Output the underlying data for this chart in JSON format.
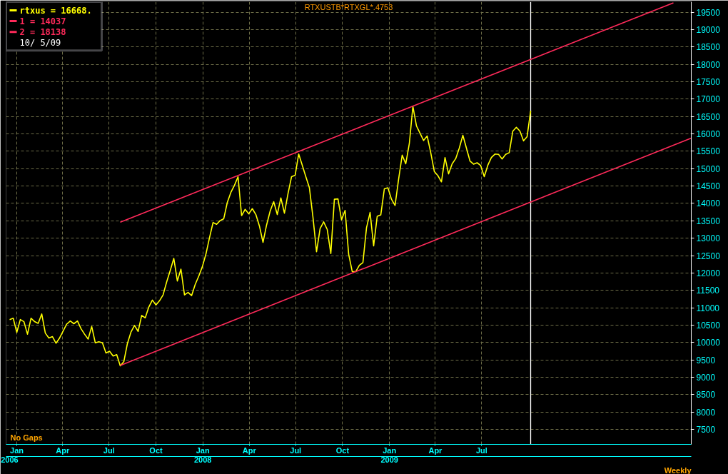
{
  "chart_data": {
    "type": "line",
    "title": "RTXUSTB*RTXGL*.4753",
    "legend_title": "10/ 5/09",
    "annotations": [
      "No Gaps",
      "Weekly"
    ],
    "x": [
      "2006-12-18",
      "2006-12-25",
      "2007-01-01",
      "2007-01-08",
      "2007-01-15",
      "2007-01-22",
      "2007-01-29",
      "2007-02-05",
      "2007-02-12",
      "2007-02-19",
      "2007-02-26",
      "2007-03-05",
      "2007-03-12",
      "2007-03-19",
      "2007-03-26",
      "2007-04-02",
      "2007-04-09",
      "2007-04-16",
      "2007-04-23",
      "2007-04-30",
      "2007-05-07",
      "2007-05-14",
      "2007-05-21",
      "2007-05-28",
      "2007-06-04",
      "2007-06-11",
      "2007-06-18",
      "2007-06-25",
      "2007-07-02",
      "2007-07-09",
      "2007-07-16",
      "2007-07-23",
      "2007-07-30",
      "2007-08-06",
      "2007-08-13",
      "2007-08-20",
      "2007-08-27",
      "2007-09-03",
      "2007-09-10",
      "2007-09-17",
      "2007-09-24",
      "2007-10-01",
      "2007-10-08",
      "2007-10-15",
      "2007-10-22",
      "2007-10-29",
      "2007-11-05",
      "2007-11-12",
      "2007-11-19",
      "2007-11-26",
      "2007-12-03",
      "2007-12-10",
      "2007-12-17",
      "2007-12-24",
      "2007-12-31",
      "2008-01-07",
      "2008-01-14",
      "2008-01-21",
      "2008-01-28",
      "2008-02-04",
      "2008-02-11",
      "2008-02-18",
      "2008-02-25",
      "2008-03-03",
      "2008-03-10",
      "2008-03-17",
      "2008-03-24",
      "2008-03-31",
      "2008-04-07",
      "2008-04-14",
      "2008-04-21",
      "2008-04-28",
      "2008-05-05",
      "2008-05-12",
      "2008-05-19",
      "2008-05-26",
      "2008-06-02",
      "2008-06-09",
      "2008-06-16",
      "2008-06-23",
      "2008-06-30",
      "2008-07-07",
      "2008-07-14",
      "2008-07-21",
      "2008-07-28",
      "2008-08-04",
      "2008-08-11",
      "2008-08-18",
      "2008-08-25",
      "2008-09-01",
      "2008-09-08",
      "2008-09-15",
      "2008-09-22",
      "2008-09-29",
      "2008-10-06",
      "2008-10-13",
      "2008-10-20",
      "2008-10-27",
      "2008-11-03",
      "2008-11-10",
      "2008-11-17",
      "2008-11-24",
      "2008-12-01",
      "2008-12-08",
      "2008-12-15",
      "2008-12-22",
      "2008-12-29",
      "2009-01-05",
      "2009-01-12",
      "2009-01-19",
      "2009-01-26",
      "2009-02-02",
      "2009-02-09",
      "2009-02-16",
      "2009-02-23",
      "2009-03-02",
      "2009-03-09",
      "2009-03-16",
      "2009-03-23",
      "2009-03-30",
      "2009-04-06",
      "2009-04-13",
      "2009-04-20",
      "2009-04-27",
      "2009-05-04",
      "2009-05-11",
      "2009-05-18",
      "2009-05-25",
      "2009-06-01",
      "2009-06-08",
      "2009-06-15",
      "2009-06-22",
      "2009-06-29",
      "2009-07-06",
      "2009-07-13",
      "2009-07-20",
      "2009-07-27",
      "2009-08-03",
      "2009-08-10",
      "2009-08-17",
      "2009-08-24",
      "2009-08-31",
      "2009-09-07",
      "2009-09-14",
      "2009-09-21",
      "2009-09-28",
      "2009-10-05"
    ],
    "series": [
      {
        "name": "rtxus = 16668.",
        "color": "#ffff00",
        "values": [
          10660,
          10700,
          10290,
          10660,
          10600,
          10240,
          10700,
          10600,
          10550,
          10820,
          10270,
          10130,
          10170,
          9980,
          10130,
          10330,
          10530,
          10620,
          10540,
          10620,
          10400,
          10240,
          10100,
          10460,
          9990,
          10020,
          9990,
          9700,
          9750,
          9610,
          9650,
          9330,
          9450,
          9970,
          10300,
          10490,
          10320,
          10780,
          10710,
          11020,
          11220,
          11080,
          11200,
          11370,
          11740,
          12070,
          12420,
          11770,
          12110,
          11370,
          11440,
          11350,
          11670,
          11910,
          12180,
          12540,
          13010,
          13450,
          13400,
          13510,
          13560,
          14030,
          14320,
          14520,
          14770,
          13650,
          13830,
          13700,
          13850,
          13680,
          13350,
          12880,
          13380,
          13780,
          14050,
          13680,
          14160,
          13720,
          14280,
          14770,
          14810,
          15420,
          15100,
          14770,
          14450,
          13600,
          12610,
          13280,
          13470,
          13250,
          12560,
          14120,
          14130,
          13530,
          13800,
          12540,
          12040,
          12040,
          12220,
          12300,
          13300,
          13740,
          12780,
          13630,
          13670,
          14420,
          14450,
          14120,
          13940,
          14700,
          15390,
          15140,
          15720,
          16790,
          16230,
          16020,
          15810,
          15940,
          15460,
          14920,
          14800,
          14620,
          15320,
          14850,
          15140,
          15290,
          15590,
          15960,
          15590,
          15220,
          15130,
          15170,
          15090,
          14770,
          15100,
          15320,
          15420,
          15410,
          15280,
          15410,
          15460,
          16080,
          16190,
          16080,
          15800,
          15920,
          16668
        ]
      },
      {
        "name": "1 = 14037",
        "color": "#ff2a5a",
        "x": [
          "2007-07-23",
          "2010-08-16"
        ],
        "values": [
          9340,
          15880
        ]
      },
      {
        "name": "2 = 18138",
        "color": "#ff2a5a",
        "x": [
          "2007-07-23",
          "2010-07-12"
        ],
        "values": [
          13460,
          19770
        ]
      }
    ],
    "xlim": [
      "2006-12-11",
      "2010-08-16"
    ],
    "xticks": [
      {
        "value": "2007-01",
        "label": "Jan"
      },
      {
        "value": "2007-04",
        "label": "Apr"
      },
      {
        "value": "2007-07",
        "label": "Jul"
      },
      {
        "value": "2007-10",
        "label": "Oct"
      },
      {
        "value": "2008-01",
        "label": "Jan"
      },
      {
        "value": "2008-04",
        "label": "Apr"
      },
      {
        "value": "2008-07",
        "label": "Jul"
      },
      {
        "value": "2008-10",
        "label": "Oct"
      },
      {
        "value": "2009-01",
        "label": "Jan"
      },
      {
        "value": "2009-04",
        "label": "Apr"
      },
      {
        "value": "2009-07",
        "label": "Jul"
      }
    ],
    "x2lim": [
      "2006-12-11",
      "2010-08-16"
    ],
    "x2ticks": [
      {
        "value": "2006-12-18",
        "label": "2006"
      },
      {
        "value": "2008-01",
        "label": "2008"
      },
      {
        "value": "2009-01",
        "label": "2009"
      }
    ],
    "ylim": [
      7070,
      19800
    ],
    "yticks": [
      7500,
      8000,
      8500,
      9000,
      9500,
      10000,
      10500,
      11000,
      11500,
      12000,
      12500,
      13000,
      13500,
      14000,
      14500,
      15000,
      15500,
      16000,
      16500,
      17000,
      17500,
      18000,
      18500,
      19000,
      19500
    ],
    "ref_lines": [
      {
        "axis": "x",
        "value": "2009-10-05",
        "color": "#ffffff"
      }
    ],
    "grid": true,
    "legend": "top left",
    "line_style": "solid",
    "marker": "none"
  }
}
